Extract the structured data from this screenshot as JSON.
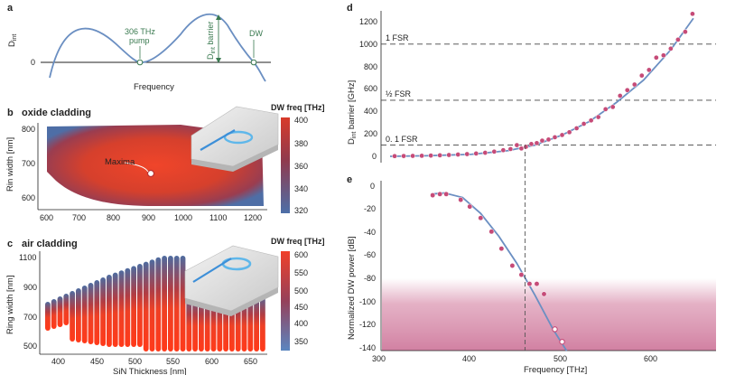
{
  "figure": {
    "panels": {
      "a": {
        "label": "a",
        "y_label_main": "D",
        "y_label_sub": "int",
        "zero_tick": "0",
        "x_label": "Frequency",
        "pump_freq": "306 THz",
        "pump_word": "pump",
        "barrier_main": "D",
        "barrier_sub": "int",
        "barrier_word": " barrier",
        "dw": "DW"
      },
      "b": {
        "label": "b",
        "title": "oxide cladding",
        "y_label": "Rin width [nm]",
        "x_ticks": [
          "600",
          "700",
          "800",
          "900",
          "1000",
          "1100",
          "1200"
        ],
        "y_ticks": [
          "600",
          "700",
          "800"
        ],
        "colorbar_title": "DW freq [THz]",
        "colorbar_ticks": [
          "400",
          "380",
          "360",
          "340",
          "320"
        ],
        "maxima_label": "Maxima"
      },
      "c": {
        "label": "c",
        "title": "air cladding",
        "y_label": "Ring width [nm]",
        "x_label": "SiN Thickness [nm]",
        "x_ticks": [
          "400",
          "450",
          "500",
          "550",
          "600",
          "650"
        ],
        "y_ticks": [
          "1100",
          "900",
          "700",
          "500"
        ],
        "colorbar_title": "DW freq [THz]",
        "colorbar_ticks": [
          "600",
          "550",
          "500",
          "450",
          "400",
          "350"
        ]
      },
      "d": {
        "label": "d",
        "y_label_main": "D",
        "y_label_sub": "int",
        "y_label_rest": " barrier [GHz]",
        "y_ticks": [
          "1200",
          "1000",
          "800",
          "600",
          "400",
          "200",
          "0"
        ],
        "ref_lines": [
          "1 FSR",
          "½ FSR",
          "0. 1 FSR"
        ]
      },
      "e": {
        "label": "e",
        "y_label": "Normalized DW power [dB]",
        "x_label": "Frequency [THz]",
        "y_ticks": [
          "0",
          "-20",
          "-40",
          "-60",
          "-80",
          "-100",
          "-120",
          "-140"
        ],
        "x_ticks": [
          "300",
          "400",
          "500",
          "600"
        ]
      }
    }
  },
  "chart_data": [
    {
      "panel": "d",
      "type": "scatter",
      "xlim": [
        300,
        670
      ],
      "ylim": [
        -60,
        1300
      ],
      "ylabel": "Dint barrier [GHz]",
      "reference_lines": [
        {
          "label": "1 FSR",
          "y": 1000
        },
        {
          "label": "½ FSR",
          "y": 500
        },
        {
          "label": "0. 1 FSR",
          "y": 100
        }
      ],
      "vertical_line_x": 459,
      "series": [
        {
          "name": "measured",
          "x": [
            315,
            325,
            335,
            345,
            355,
            365,
            375,
            385,
            395,
            405,
            415,
            425,
            435,
            443,
            450,
            455,
            460,
            466,
            472,
            478,
            485,
            492,
            500,
            508,
            516,
            524,
            532,
            540,
            548,
            556,
            564,
            572,
            580,
            588,
            596,
            604,
            612,
            620,
            628,
            636,
            644
          ],
          "y": [
            2,
            3,
            4,
            5,
            7,
            9,
            12,
            16,
            20,
            25,
            32,
            42,
            55,
            65,
            100,
            70,
            85,
            110,
            118,
            140,
            150,
            170,
            190,
            215,
            250,
            290,
            320,
            350,
            420,
            440,
            540,
            590,
            640,
            720,
            770,
            880,
            900,
            960,
            1040,
            1110,
            1270
          ]
        },
        {
          "name": "fit",
          "x": [
            310,
            350,
            400,
            440,
            470,
            500,
            530,
            560,
            590,
            620,
            645
          ],
          "y": [
            0,
            5,
            18,
            50,
            100,
            190,
            310,
            480,
            680,
            950,
            1230
          ]
        }
      ]
    },
    {
      "panel": "e",
      "type": "scatter",
      "xlim": [
        300,
        670
      ],
      "ylim": [
        -145,
        5
      ],
      "ylabel": "Normalized DW power [dB]",
      "xlabel": "Frequency [THz]",
      "series": [
        {
          "name": "measured",
          "x": [
            357,
            365,
            372,
            388,
            398,
            410,
            422,
            433,
            445,
            455,
            464,
            472,
            480,
            492,
            500
          ],
          "y": [
            -8,
            -7,
            -7,
            -12,
            -18,
            -28,
            -40,
            -55,
            -70,
            -78,
            -86,
            -86,
            -95,
            -126,
            -137
          ]
        },
        {
          "name": "fit",
          "x": [
            355,
            370,
            390,
            410,
            430,
            450,
            470,
            490,
            505
          ],
          "y": [
            -7,
            -6,
            -10,
            -24,
            -44,
            -68,
            -96,
            -126,
            -145
          ]
        }
      ]
    },
    {
      "panel": "a",
      "type": "line",
      "xlabel": "Frequency",
      "ylabel": "Dint",
      "series": [
        {
          "name": "Dint curve",
          "x": [
            0,
            0.05,
            0.12,
            0.2,
            0.28,
            0.34,
            0.42,
            0.5,
            0.58,
            0.66,
            0.74,
            0.82,
            0.88,
            0.94,
            1.0
          ],
          "y": [
            -0.45,
            0.05,
            0.32,
            0.28,
            0.12,
            0.0,
            0.08,
            0.45,
            0.85,
            1.0,
            0.82,
            0.42,
            0.0,
            -0.35,
            -0.55
          ]
        }
      ],
      "markers": [
        {
          "label": "306 THz pump",
          "x": 0.34,
          "y": 0.0
        },
        {
          "label": "DW",
          "x": 0.88,
          "y": 0.0
        }
      ]
    }
  ]
}
